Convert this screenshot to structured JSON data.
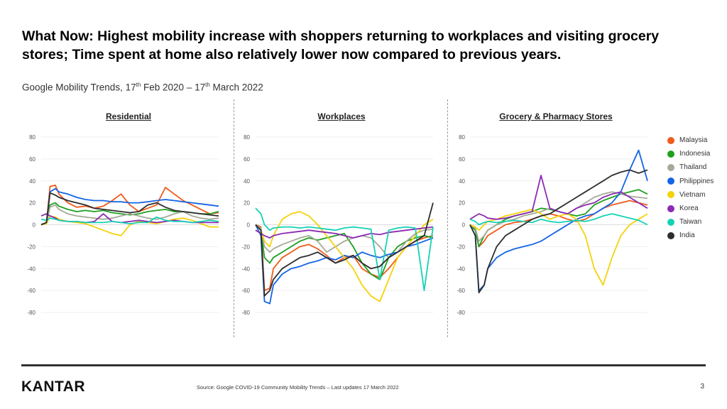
{
  "header": {
    "title": "What Now: Highest mobility increase with shoppers returning to workplaces and visiting grocery stores; Time spent at home also relatively lower now compared to previous years.",
    "subtitle_prefix": "Google Mobility Trends, 17",
    "subtitle_sup1": "th",
    "subtitle_middle": " Feb 2020 – 17",
    "subtitle_sup2": "th",
    "subtitle_suffix": " March 2022"
  },
  "footer": {
    "logo": "KANTAR",
    "source": "Source: Google COVID-19 Community Mobility Trends – Last updates 17 March 2022",
    "page_number": "3"
  },
  "chart_data": [
    {
      "type": "line",
      "title": "Residential",
      "ylim": [
        -80,
        80
      ],
      "yticks": [
        80,
        60,
        40,
        20,
        0,
        -20,
        -40,
        -60,
        -80
      ],
      "x": [
        0,
        0.03,
        0.05,
        0.08,
        0.1,
        0.15,
        0.2,
        0.25,
        0.3,
        0.35,
        0.4,
        0.45,
        0.5,
        0.55,
        0.6,
        0.65,
        0.7,
        0.75,
        0.8,
        0.85,
        0.9,
        0.95,
        1
      ],
      "series": [
        {
          "name": "Malaysia",
          "values": [
            0,
            2,
            35,
            36,
            28,
            20,
            16,
            17,
            15,
            17,
            22,
            28,
            18,
            12,
            15,
            18,
            34,
            28,
            22,
            18,
            14,
            10,
            11
          ]
        },
        {
          "name": "Indonesia",
          "values": [
            0,
            2,
            18,
            20,
            17,
            14,
            12,
            13,
            12,
            13,
            11,
            10,
            9,
            10,
            12,
            13,
            14,
            12,
            12,
            11,
            10,
            10,
            12
          ]
        },
        {
          "name": "Thailand",
          "values": [
            0,
            2,
            16,
            18,
            14,
            10,
            8,
            7,
            6,
            5,
            6,
            8,
            10,
            8,
            6,
            5,
            7,
            10,
            12,
            8,
            6,
            5,
            6
          ]
        },
        {
          "name": "Philippines",
          "values": [
            0,
            2,
            30,
            33,
            30,
            28,
            25,
            23,
            22,
            22,
            21,
            21,
            20,
            20,
            21,
            22,
            23,
            22,
            21,
            20,
            19,
            18,
            17
          ]
        },
        {
          "name": "Vietnam",
          "values": [
            0,
            1,
            8,
            7,
            5,
            3,
            2,
            1,
            -2,
            -5,
            -8,
            -10,
            0,
            3,
            2,
            1,
            3,
            5,
            6,
            4,
            1,
            -2,
            -2
          ]
        },
        {
          "name": "Korea",
          "values": [
            8,
            10,
            8,
            6,
            4,
            3,
            3,
            2,
            3,
            10,
            3,
            2,
            3,
            4,
            3,
            2,
            3,
            4,
            3,
            2,
            2,
            2,
            2
          ]
        },
        {
          "name": "Taiwan",
          "values": [
            5,
            4,
            6,
            5,
            4,
            3,
            3,
            2,
            2,
            2,
            3,
            2,
            1,
            2,
            2,
            7,
            4,
            3,
            3,
            2,
            3,
            4,
            3
          ]
        },
        {
          "name": "India",
          "values": [
            0,
            2,
            29,
            27,
            25,
            22,
            20,
            18,
            15,
            14,
            13,
            12,
            11,
            12,
            18,
            20,
            16,
            13,
            12,
            11,
            10,
            9,
            8
          ]
        }
      ]
    },
    {
      "type": "line",
      "title": "Workplaces",
      "ylim": [
        -80,
        80
      ],
      "yticks": [
        80,
        60,
        40,
        20,
        0,
        -20,
        -40,
        -60,
        -80
      ],
      "x": [
        0,
        0.03,
        0.05,
        0.08,
        0.1,
        0.15,
        0.2,
        0.25,
        0.3,
        0.35,
        0.4,
        0.45,
        0.5,
        0.55,
        0.6,
        0.65,
        0.7,
        0.75,
        0.8,
        0.85,
        0.9,
        0.95,
        1
      ],
      "series": [
        {
          "name": "Malaysia",
          "values": [
            0,
            -2,
            -60,
            -58,
            -40,
            -30,
            -25,
            -20,
            -18,
            -22,
            -28,
            -35,
            -30,
            -28,
            -40,
            -45,
            -48,
            -40,
            -30,
            -20,
            -15,
            -12,
            -10
          ]
        },
        {
          "name": "Indonesia",
          "values": [
            0,
            -5,
            -30,
            -35,
            -30,
            -25,
            -20,
            -15,
            -12,
            -14,
            -12,
            -10,
            -8,
            -20,
            -35,
            -45,
            -50,
            -30,
            -20,
            -15,
            -12,
            -10,
            -12
          ]
        },
        {
          "name": "Thailand",
          "values": [
            0,
            -3,
            -20,
            -25,
            -22,
            -18,
            -15,
            -12,
            -10,
            -15,
            -25,
            -20,
            -15,
            -12,
            -10,
            -12,
            -20,
            -30,
            -25,
            -15,
            -8,
            -5,
            -4
          ]
        },
        {
          "name": "Philippines",
          "values": [
            0,
            -10,
            -70,
            -72,
            -55,
            -45,
            -40,
            -38,
            -35,
            -33,
            -30,
            -32,
            -28,
            -30,
            -25,
            -28,
            -30,
            -27,
            -25,
            -20,
            -18,
            -15,
            -12
          ]
        },
        {
          "name": "Vietnam",
          "values": [
            0,
            -5,
            -15,
            -20,
            -10,
            5,
            10,
            12,
            8,
            0,
            -10,
            -20,
            -30,
            -40,
            -55,
            -65,
            -70,
            -50,
            -30,
            -20,
            -10,
            0,
            5
          ]
        },
        {
          "name": "Korea",
          "values": [
            -5,
            -8,
            -10,
            -12,
            -10,
            -8,
            -7,
            -6,
            -5,
            -6,
            -7,
            -8,
            -10,
            -12,
            -10,
            -8,
            -9,
            -7,
            -6,
            -5,
            -4,
            -3,
            -2
          ]
        },
        {
          "name": "Taiwan",
          "values": [
            15,
            10,
            0,
            -5,
            -3,
            -2,
            -2,
            -3,
            -2,
            -3,
            -4,
            -5,
            -3,
            -2,
            -3,
            -4,
            -50,
            -5,
            -3,
            -2,
            -3,
            -60,
            -2
          ]
        },
        {
          "name": "India",
          "values": [
            0,
            -5,
            -65,
            -60,
            -50,
            -40,
            -35,
            -30,
            -28,
            -25,
            -30,
            -35,
            -32,
            -28,
            -35,
            -40,
            -38,
            -30,
            -25,
            -20,
            -15,
            -10,
            20
          ]
        }
      ]
    },
    {
      "type": "line",
      "title": "Grocery & Pharmacy Stores",
      "ylim": [
        -80,
        80
      ],
      "yticks": [
        80,
        60,
        40,
        20,
        0,
        -20,
        -40,
        -60,
        -80
      ],
      "x": [
        0,
        0.03,
        0.05,
        0.08,
        0.1,
        0.15,
        0.2,
        0.25,
        0.3,
        0.35,
        0.4,
        0.45,
        0.5,
        0.55,
        0.6,
        0.65,
        0.7,
        0.75,
        0.8,
        0.85,
        0.9,
        0.95,
        1
      ],
      "series": [
        {
          "name": "Malaysia",
          "values": [
            0,
            -5,
            -20,
            -15,
            -10,
            -5,
            0,
            2,
            3,
            5,
            8,
            10,
            8,
            5,
            3,
            5,
            10,
            15,
            18,
            20,
            22,
            20,
            18
          ]
        },
        {
          "name": "Indonesia",
          "values": [
            0,
            -5,
            -20,
            -10,
            -5,
            0,
            5,
            8,
            10,
            12,
            15,
            14,
            12,
            10,
            8,
            10,
            18,
            22,
            25,
            28,
            30,
            32,
            28
          ]
        },
        {
          "name": "Thailand",
          "values": [
            0,
            -3,
            -15,
            -10,
            -5,
            0,
            3,
            5,
            8,
            10,
            12,
            15,
            12,
            10,
            15,
            20,
            25,
            28,
            30,
            28,
            26,
            25,
            24
          ]
        },
        {
          "name": "Philippines",
          "values": [
            0,
            -10,
            -60,
            -55,
            -40,
            -30,
            -25,
            -22,
            -20,
            -18,
            -15,
            -10,
            -5,
            0,
            5,
            8,
            10,
            15,
            20,
            30,
            50,
            68,
            40
          ]
        },
        {
          "name": "Vietnam",
          "values": [
            0,
            -2,
            -5,
            0,
            3,
            5,
            8,
            10,
            12,
            14,
            10,
            5,
            8,
            10,
            5,
            -10,
            -40,
            -55,
            -30,
            -10,
            0,
            5,
            10
          ]
        },
        {
          "name": "Korea",
          "values": [
            5,
            8,
            10,
            8,
            6,
            5,
            6,
            8,
            10,
            12,
            45,
            15,
            12,
            10,
            15,
            18,
            20,
            25,
            28,
            30,
            25,
            20,
            15
          ]
        },
        {
          "name": "Taiwan",
          "values": [
            5,
            3,
            0,
            2,
            3,
            2,
            3,
            4,
            3,
            2,
            5,
            3,
            2,
            3,
            4,
            3,
            5,
            8,
            10,
            8,
            6,
            4,
            0
          ]
        },
        {
          "name": "India",
          "values": [
            0,
            -10,
            -62,
            -55,
            -40,
            -20,
            -10,
            -5,
            0,
            5,
            8,
            10,
            15,
            20,
            25,
            30,
            35,
            40,
            45,
            48,
            50,
            47,
            50
          ]
        }
      ]
    }
  ],
  "legend": [
    {
      "name": "Malaysia",
      "color": "#f05a1a"
    },
    {
      "name": "Indonesia",
      "color": "#1ea01e"
    },
    {
      "name": "Thailand",
      "color": "#a5aa98"
    },
    {
      "name": "Philippines",
      "color": "#1464e6"
    },
    {
      "name": "Vietnam",
      "color": "#f5d20a"
    },
    {
      "name": "Korea",
      "color": "#8c2ab4"
    },
    {
      "name": "Taiwan",
      "color": "#14d2b4"
    },
    {
      "name": "India",
      "color": "#2d2d2d"
    }
  ]
}
